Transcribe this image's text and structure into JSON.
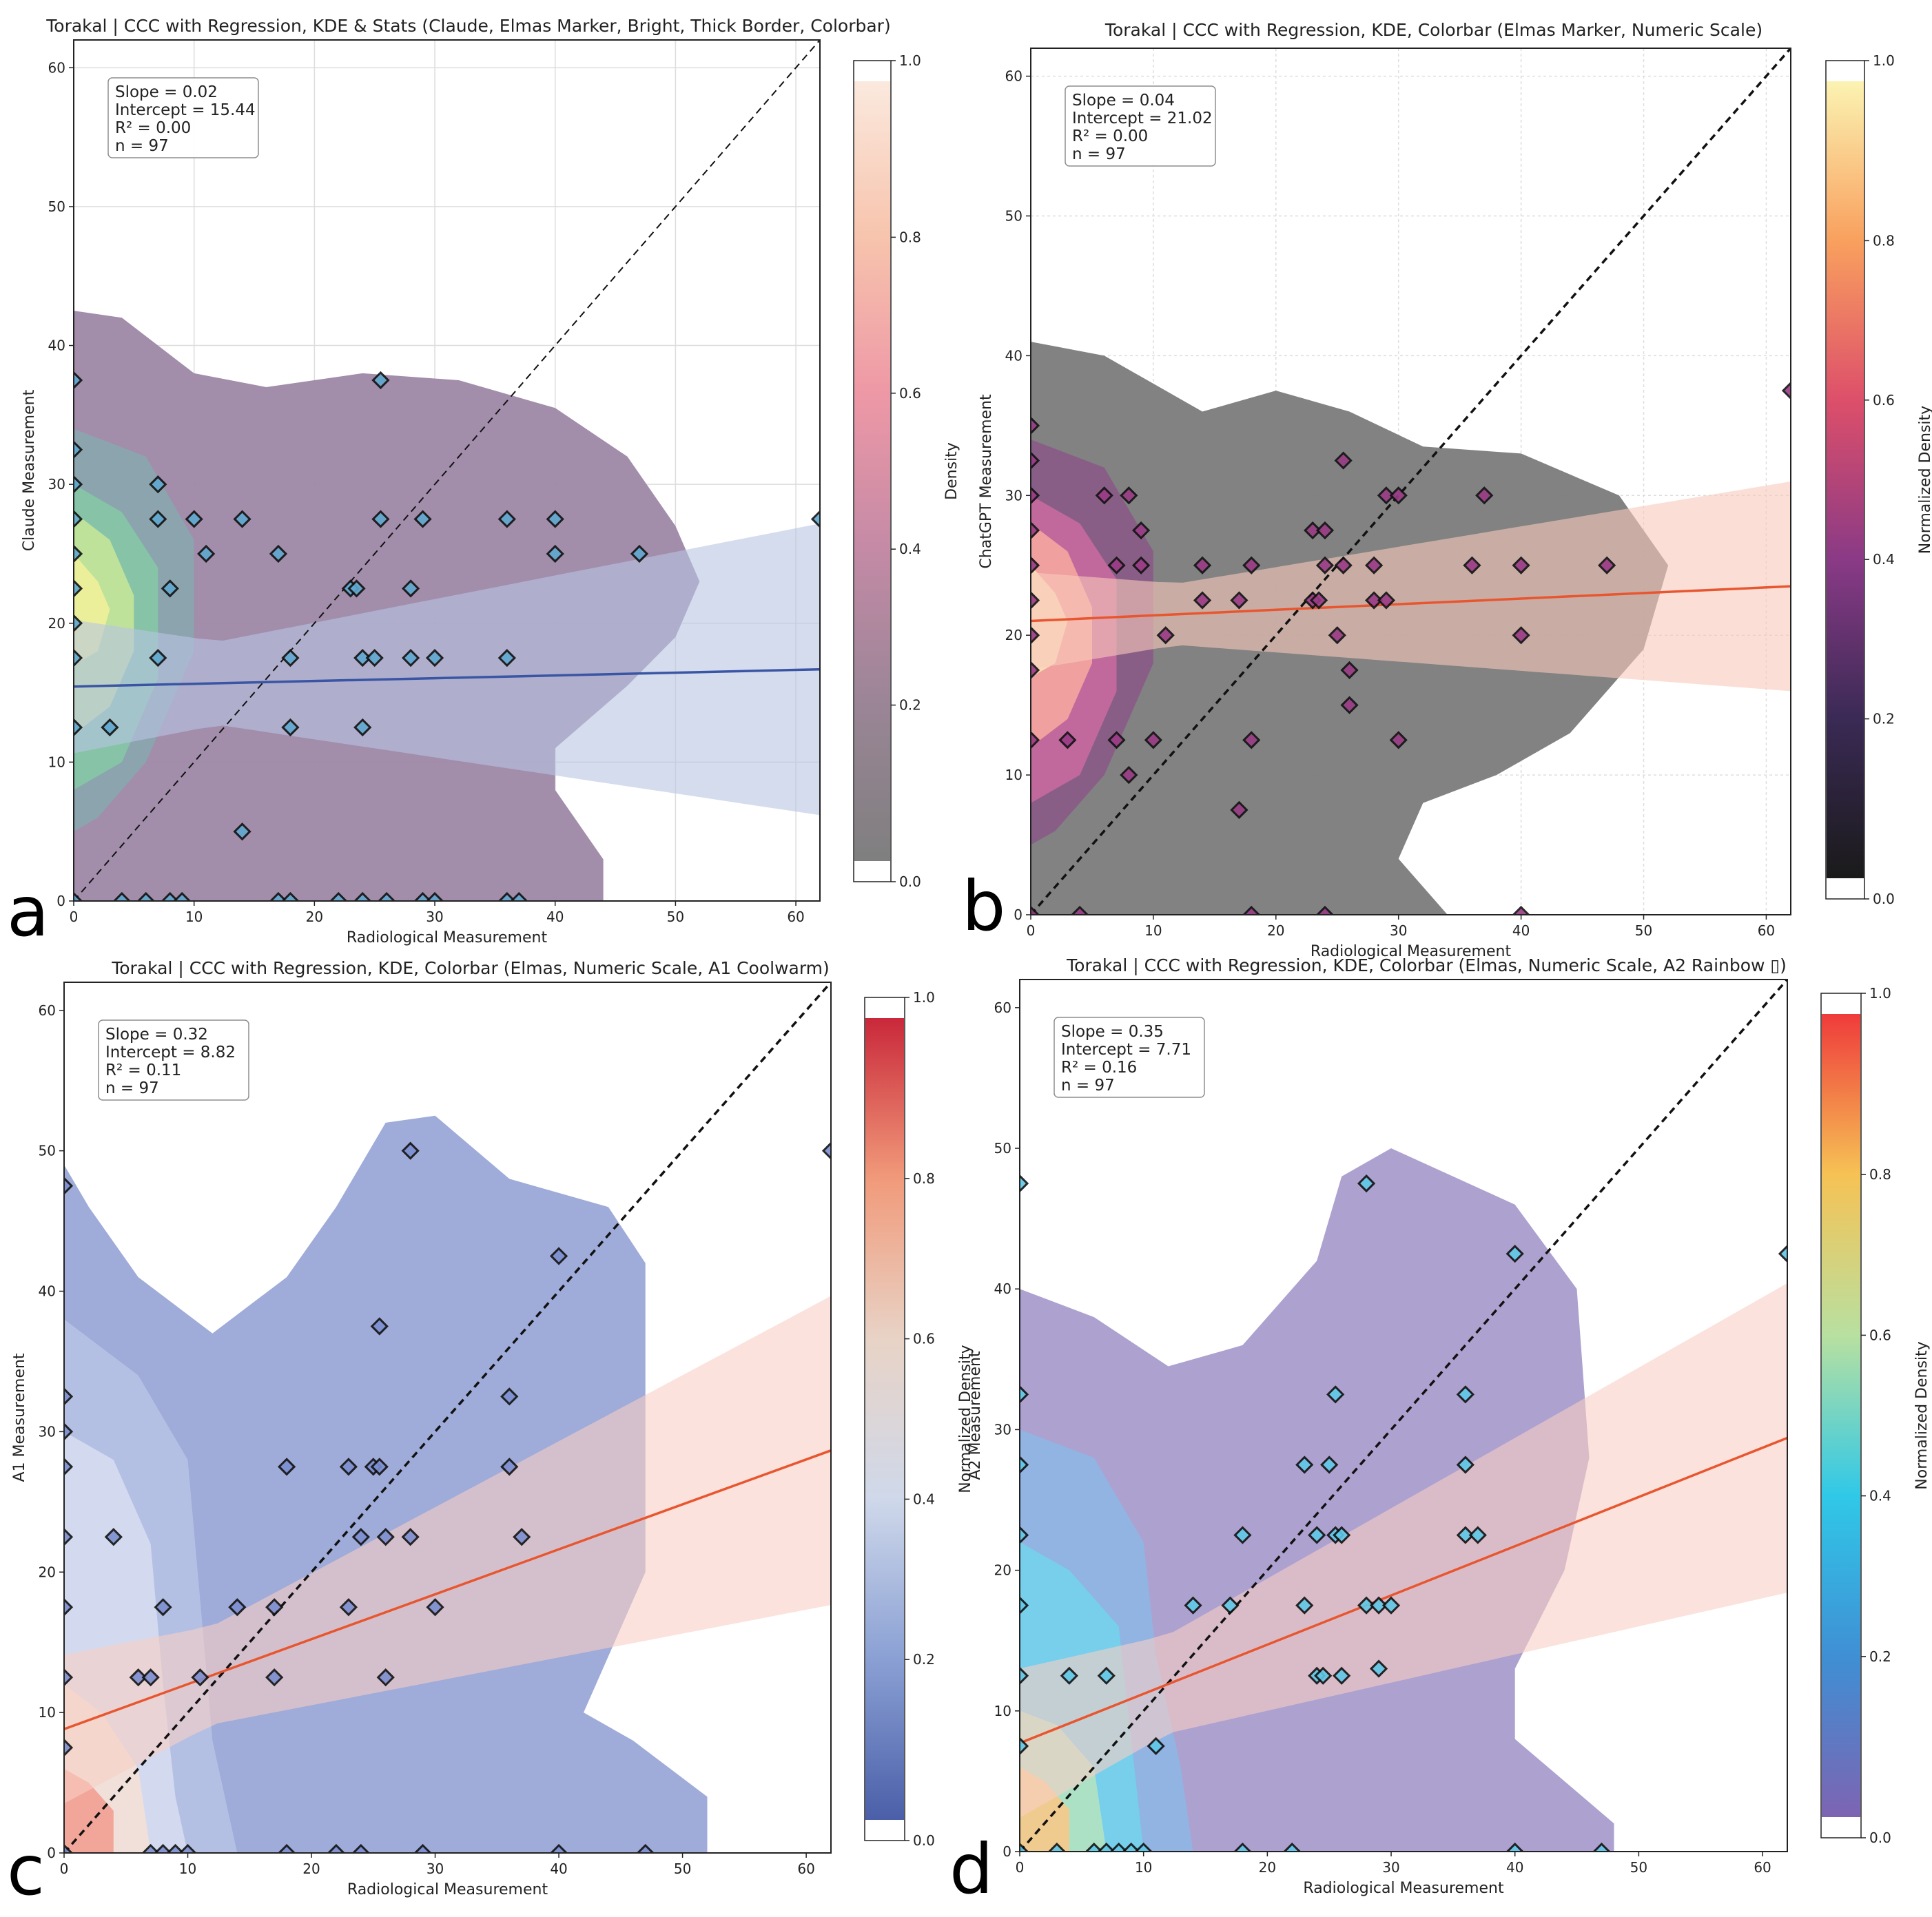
{
  "figure": {
    "panel_letters": [
      "a",
      "b",
      "c",
      "d"
    ]
  },
  "chart_data": [
    {
      "id": "a",
      "type": "scatter",
      "title": "Torakal | CCC with Regression, KDE & Stats (Claude, Elmas Marker, Bright, Thick Border, Colorbar)",
      "xlabel": "Radiological Measurement",
      "ylabel": "Claude Measurement",
      "xlim": [
        0,
        62
      ],
      "ylim": [
        0,
        62
      ],
      "xticks": [
        0,
        10,
        20,
        30,
        40,
        50,
        60
      ],
      "yticks": [
        0,
        10,
        20,
        30,
        40,
        50,
        60
      ],
      "grid": true,
      "stats": [
        "Slope = 0.02",
        "Intercept = 15.44",
        "R² = 0.00",
        "n = 97"
      ],
      "regression": {
        "slope": 0.02,
        "intercept": 15.44,
        "color": "#3a55a4"
      },
      "band_color": "#b8c4e2",
      "identity_line": true,
      "colorbar": {
        "label": "Density",
        "min": 0.0,
        "max": 1.0,
        "ticks": [
          0.0,
          0.2,
          0.4,
          0.6,
          0.8,
          1.0
        ],
        "stops": [
          "#7f7f7f",
          "#9a8596",
          "#c48aa6",
          "#ee98a6",
          "#f7c4ad",
          "#fbe9de"
        ]
      },
      "kde_colors": [
        "#9d87a6",
        "#8aa6ae",
        "#86c6a6",
        "#c5e59a",
        "#f1f19a"
      ],
      "marker_fill": "#5fa8d0",
      "points": [
        [
          0,
          37.5
        ],
        [
          0,
          32.5
        ],
        [
          0,
          30
        ],
        [
          0,
          27.5
        ],
        [
          0,
          25
        ],
        [
          0,
          22.5
        ],
        [
          0,
          20
        ],
        [
          0,
          17.5
        ],
        [
          0,
          12.5
        ],
        [
          0,
          0
        ],
        [
          3,
          12.5
        ],
        [
          4,
          0
        ],
        [
          6,
          0
        ],
        [
          7,
          30
        ],
        [
          7,
          27.5
        ],
        [
          7,
          17.5
        ],
        [
          8,
          0
        ],
        [
          8,
          22.5
        ],
        [
          9,
          0
        ],
        [
          10,
          27.5
        ],
        [
          11,
          25
        ],
        [
          14,
          27.5
        ],
        [
          14,
          5
        ],
        [
          17,
          25
        ],
        [
          17,
          0
        ],
        [
          18,
          17.5
        ],
        [
          18,
          12.5
        ],
        [
          18,
          0
        ],
        [
          22,
          0
        ],
        [
          23,
          22.5
        ],
        [
          23.5,
          22.5
        ],
        [
          24,
          17.5
        ],
        [
          24,
          12.5
        ],
        [
          24,
          0
        ],
        [
          25,
          17.5
        ],
        [
          25.5,
          37.5
        ],
        [
          25.5,
          27.5
        ],
        [
          26,
          0
        ],
        [
          28,
          22.5
        ],
        [
          28,
          17.5
        ],
        [
          29,
          27.5
        ],
        [
          29,
          0
        ],
        [
          30,
          17.5
        ],
        [
          30,
          0
        ],
        [
          36,
          27.5
        ],
        [
          36,
          17.5
        ],
        [
          36,
          0
        ],
        [
          37,
          0
        ],
        [
          40,
          27.5
        ],
        [
          40,
          25
        ],
        [
          47,
          25
        ],
        [
          62,
          27.5
        ]
      ]
    },
    {
      "id": "b",
      "type": "scatter",
      "title": "Torakal | CCC with Regression, KDE, Colorbar (Elmas Marker, Numeric Scale)",
      "xlabel": "Radiological Measurement",
      "ylabel": "ChatGPT Measurement",
      "xlim": [
        0,
        62
      ],
      "ylim": [
        0,
        62
      ],
      "xticks": [
        0,
        10,
        20,
        30,
        40,
        50,
        60
      ],
      "yticks": [
        0,
        10,
        20,
        30,
        40,
        50,
        60
      ],
      "grid": true,
      "stats": [
        "Slope = 0.04",
        "Intercept = 21.02",
        "R² = 0.00",
        "n = 97"
      ],
      "regression": {
        "slope": 0.04,
        "intercept": 21.02,
        "color": "#e8562f"
      },
      "band_color": "#f8c9bd",
      "identity_line": true,
      "colorbar": {
        "label": "Normalized Density",
        "min": 0.0,
        "max": 1.0,
        "ticks": [
          0.0,
          0.2,
          0.4,
          0.6,
          0.8,
          1.0
        ],
        "stops": [
          "#1a1a1a",
          "#3a2a55",
          "#8a3a86",
          "#dd4f6a",
          "#f9a05e",
          "#fbf3b2"
        ]
      },
      "kde_colors": [
        "#7b7b7b",
        "#8a5a86",
        "#c86a9e",
        "#f4a6a0",
        "#fbe0b8"
      ],
      "marker_fill": "#9a3a86",
      "points": [
        [
          0,
          35
        ],
        [
          0,
          32.5
        ],
        [
          0,
          30
        ],
        [
          0,
          27.5
        ],
        [
          0,
          25
        ],
        [
          0,
          22.5
        ],
        [
          0,
          20
        ],
        [
          0,
          17.5
        ],
        [
          0,
          12.5
        ],
        [
          0,
          0
        ],
        [
          3,
          12.5
        ],
        [
          4,
          0
        ],
        [
          6,
          30
        ],
        [
          7,
          12.5
        ],
        [
          7,
          25
        ],
        [
          8,
          30
        ],
        [
          8,
          10
        ],
        [
          9,
          27.5
        ],
        [
          9,
          25
        ],
        [
          10,
          12.5
        ],
        [
          11,
          20
        ],
        [
          14,
          25
        ],
        [
          14,
          22.5
        ],
        [
          17,
          22.5
        ],
        [
          17,
          7.5
        ],
        [
          18,
          25
        ],
        [
          18,
          12.5
        ],
        [
          18,
          0
        ],
        [
          23,
          27.5
        ],
        [
          23,
          22.5
        ],
        [
          23.5,
          22.5
        ],
        [
          24,
          27.5
        ],
        [
          24,
          25
        ],
        [
          24,
          0
        ],
        [
          25,
          20
        ],
        [
          25.5,
          32.5
        ],
        [
          25.5,
          25
        ],
        [
          26,
          17.5
        ],
        [
          26,
          15
        ],
        [
          28,
          25
        ],
        [
          28,
          22.5
        ],
        [
          29,
          30
        ],
        [
          29,
          22.5
        ],
        [
          30,
          30
        ],
        [
          30,
          12.5
        ],
        [
          36,
          25
        ],
        [
          37,
          30
        ],
        [
          40,
          25
        ],
        [
          40,
          20
        ],
        [
          40,
          0
        ],
        [
          47,
          25
        ],
        [
          62,
          37.5
        ]
      ]
    },
    {
      "id": "c",
      "type": "scatter",
      "title": "Torakal | CCC with Regression, KDE, Colorbar (Elmas, Numeric Scale, A1 Coolwarm)",
      "xlabel": "Radiological Measurement",
      "ylabel": "A1 Measurement",
      "xlim": [
        0,
        62
      ],
      "ylim": [
        0,
        62
      ],
      "xticks": [
        0,
        10,
        20,
        30,
        40,
        50,
        60
      ],
      "yticks": [
        0,
        10,
        20,
        30,
        40,
        50,
        60
      ],
      "grid": false,
      "stats": [
        "Slope = 0.32",
        "Intercept = 8.82",
        "R² = 0.11",
        "n = 97"
      ],
      "regression": {
        "slope": 0.32,
        "intercept": 8.82,
        "color": "#e8562f"
      },
      "band_color": "#f9cfc4",
      "identity_line": true,
      "colorbar": {
        "label": "Normalized Density",
        "min": 0.0,
        "max": 1.0,
        "ticks": [
          0.0,
          0.2,
          0.4,
          0.6,
          0.8,
          1.0
        ],
        "stops": [
          "#4a5fa8",
          "#8aa0d4",
          "#cfd8ea",
          "#e8d3c6",
          "#f19a7a",
          "#c9283a"
        ]
      },
      "kde_colors": [
        "#9aa6d6",
        "#b6c2e4",
        "#d6dcee",
        "#f4e0d6",
        "#f2a092"
      ],
      "marker_fill": "#7c8fd0",
      "points": [
        [
          0,
          47.5
        ],
        [
          0,
          32.5
        ],
        [
          0,
          30
        ],
        [
          0,
          27.5
        ],
        [
          0,
          22.5
        ],
        [
          0,
          17.5
        ],
        [
          0,
          12.5
        ],
        [
          0,
          7.5
        ],
        [
          0,
          0
        ],
        [
          4,
          22.5
        ],
        [
          6,
          12.5
        ],
        [
          7,
          12.5
        ],
        [
          7,
          0
        ],
        [
          8,
          17.5
        ],
        [
          8,
          0
        ],
        [
          9,
          0
        ],
        [
          10,
          0
        ],
        [
          11,
          12.5
        ],
        [
          14,
          17.5
        ],
        [
          17,
          17.5
        ],
        [
          17,
          12.5
        ],
        [
          18,
          27.5
        ],
        [
          18,
          0
        ],
        [
          22,
          0
        ],
        [
          23,
          27.5
        ],
        [
          23,
          17.5
        ],
        [
          24,
          22.5
        ],
        [
          24,
          0
        ],
        [
          25,
          27.5
        ],
        [
          25.5,
          27.5
        ],
        [
          25.5,
          37.5
        ],
        [
          26,
          22.5
        ],
        [
          26,
          12.5
        ],
        [
          28,
          50
        ],
        [
          28,
          22.5
        ],
        [
          29,
          0
        ],
        [
          30,
          17.5
        ],
        [
          36,
          32.5
        ],
        [
          36,
          27.5
        ],
        [
          37,
          22.5
        ],
        [
          40,
          42.5
        ],
        [
          40,
          0
        ],
        [
          47,
          0
        ],
        [
          62,
          50
        ]
      ]
    },
    {
      "id": "d",
      "type": "scatter",
      "title": "Torakal | CCC with Regression, KDE, Colorbar (Elmas, Numeric Scale, A2 Rainbow ▯)",
      "xlabel": "Radiological Measurement",
      "ylabel": "A2 Measurement",
      "xlim": [
        0,
        62
      ],
      "ylim": [
        0,
        62
      ],
      "xticks": [
        0,
        10,
        20,
        30,
        40,
        50,
        60
      ],
      "yticks": [
        0,
        10,
        20,
        30,
        40,
        50,
        60
      ],
      "grid": false,
      "stats": [
        "Slope = 0.35",
        "Intercept = 7.71",
        "R² = 0.16",
        "n = 97"
      ],
      "regression": {
        "slope": 0.35,
        "intercept": 7.71,
        "color": "#e8562f"
      },
      "band_color": "#f9cfc4",
      "identity_line": true,
      "colorbar": {
        "label": "Normalized Density",
        "min": 0.0,
        "max": 1.0,
        "ticks": [
          0.0,
          0.2,
          0.4,
          0.6,
          0.8,
          1.0
        ],
        "stops": [
          "#7d64b2",
          "#3f8fd4",
          "#30c8e8",
          "#b8e0a0",
          "#f6c255",
          "#ef3b3b"
        ]
      },
      "kde_colors": [
        "#a99ccd",
        "#8fb6e4",
        "#74d2ec",
        "#b2e2c2",
        "#f7c98a"
      ],
      "marker_fill": "#5fc8e8",
      "points": [
        [
          0,
          47.5
        ],
        [
          0,
          32.5
        ],
        [
          0,
          27.5
        ],
        [
          0,
          22.5
        ],
        [
          0,
          17.5
        ],
        [
          0,
          12.5
        ],
        [
          0,
          7.5
        ],
        [
          0,
          0
        ],
        [
          3,
          0
        ],
        [
          4,
          12.5
        ],
        [
          6,
          0
        ],
        [
          7,
          12.5
        ],
        [
          7,
          0
        ],
        [
          8,
          0
        ],
        [
          9,
          0
        ],
        [
          10,
          0
        ],
        [
          11,
          7.5
        ],
        [
          14,
          17.5
        ],
        [
          17,
          17.5
        ],
        [
          18,
          22.5
        ],
        [
          18,
          0
        ],
        [
          22,
          0
        ],
        [
          23,
          27.5
        ],
        [
          23,
          17.5
        ],
        [
          24,
          22.5
        ],
        [
          24,
          12.5
        ],
        [
          24.5,
          12.5
        ],
        [
          25,
          27.5
        ],
        [
          25.5,
          22.5
        ],
        [
          25.5,
          32.5
        ],
        [
          26,
          22.5
        ],
        [
          26,
          12.5
        ],
        [
          28,
          47.5
        ],
        [
          28,
          17.5
        ],
        [
          29,
          17.5
        ],
        [
          29,
          13
        ],
        [
          30,
          17.5
        ],
        [
          36,
          32.5
        ],
        [
          36,
          27.5
        ],
        [
          36,
          22.5
        ],
        [
          37,
          22.5
        ],
        [
          40,
          42.5
        ],
        [
          40,
          0
        ],
        [
          47,
          0
        ],
        [
          62,
          42.5
        ]
      ]
    }
  ]
}
